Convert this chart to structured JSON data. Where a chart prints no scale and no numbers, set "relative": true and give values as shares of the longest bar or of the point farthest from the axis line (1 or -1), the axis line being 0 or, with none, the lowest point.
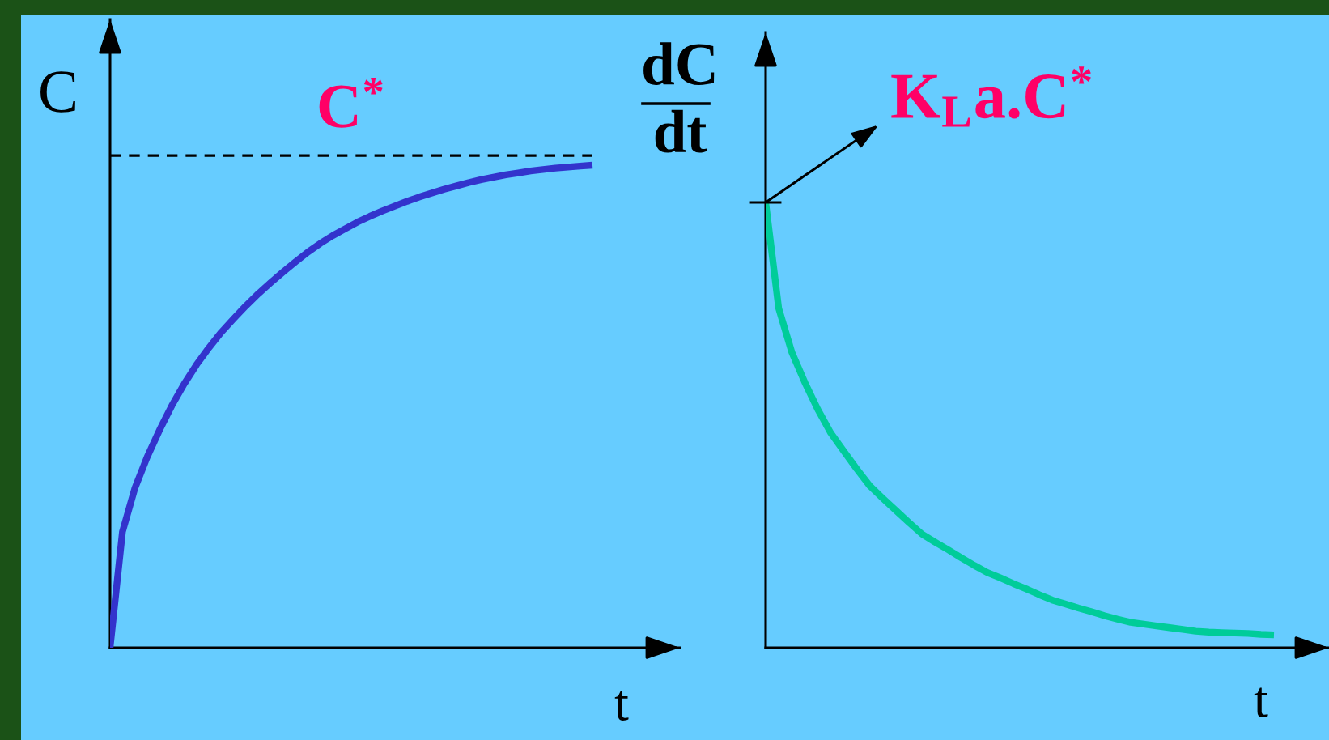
{
  "chart_data": [
    {
      "type": "line",
      "relative": true,
      "xlabel": "t",
      "ylabel": "C",
      "categories": [
        null,
        null,
        null,
        null,
        null,
        null,
        null,
        null,
        null,
        null,
        null,
        null,
        null,
        null,
        null,
        null,
        null,
        null,
        null,
        null,
        null,
        null,
        null,
        null,
        null,
        null,
        null,
        null,
        null,
        null,
        null,
        null,
        null,
        null,
        null,
        null,
        null,
        null,
        null,
        null
      ],
      "series": [
        {
          "color": "#3333cc",
          "values": [
            0,
            0.24,
            0.33,
            0.395,
            0.451,
            0.502,
            0.547,
            0.587,
            0.622,
            0.654,
            0.682,
            0.709,
            0.734,
            0.757,
            0.779,
            0.8,
            0.82,
            0.838,
            0.854,
            0.868,
            0.882,
            0.894,
            0.905,
            0.915,
            0.925,
            0.934,
            0.942,
            0.95,
            0.957,
            0.964,
            0.97,
            0.975,
            0.98,
            0.984,
            0.988,
            0.991,
            0.994,
            0.996,
            0.998,
            1
          ]
        }
      ],
      "ref_lines": [
        {
          "axis": "y",
          "value": 1.02,
          "label": "C$^{*}$",
          "color": "#000000",
          "line_style": "dashed"
        }
      ]
    },
    {
      "type": "line",
      "relative": true,
      "xlabel": "t",
      "ylabel": "dC\ndt",
      "categories": [
        null,
        null,
        null,
        null,
        null,
        null,
        null,
        null,
        null,
        null,
        null,
        null,
        null,
        null,
        null,
        null,
        null,
        null,
        null,
        null,
        null,
        null,
        null,
        null,
        null,
        null,
        null,
        null,
        null,
        null,
        null,
        null,
        null,
        null,
        null,
        null,
        null,
        null,
        null,
        null
      ],
      "series": [
        {
          "color": "#00cc99",
          "values": [
            1,
            0.762,
            0.664,
            0.596,
            0.535,
            0.482,
            0.441,
            0.401,
            0.363,
            0.335,
            0.308,
            0.281,
            0.255,
            0.237,
            0.22,
            0.202,
            0.185,
            0.169,
            0.157,
            0.144,
            0.132,
            0.119,
            0.107,
            0.098,
            0.089,
            0.081,
            0.072,
            0.064,
            0.057,
            0.053,
            0.049,
            0.045,
            0.041,
            0.037,
            0.035,
            0.034,
            0.033,
            0.032,
            0.03,
            0.029
          ]
        }
      ],
      "annotations": [
        "K$_{L}$a.C$^{*}$"
      ]
    }
  ]
}
